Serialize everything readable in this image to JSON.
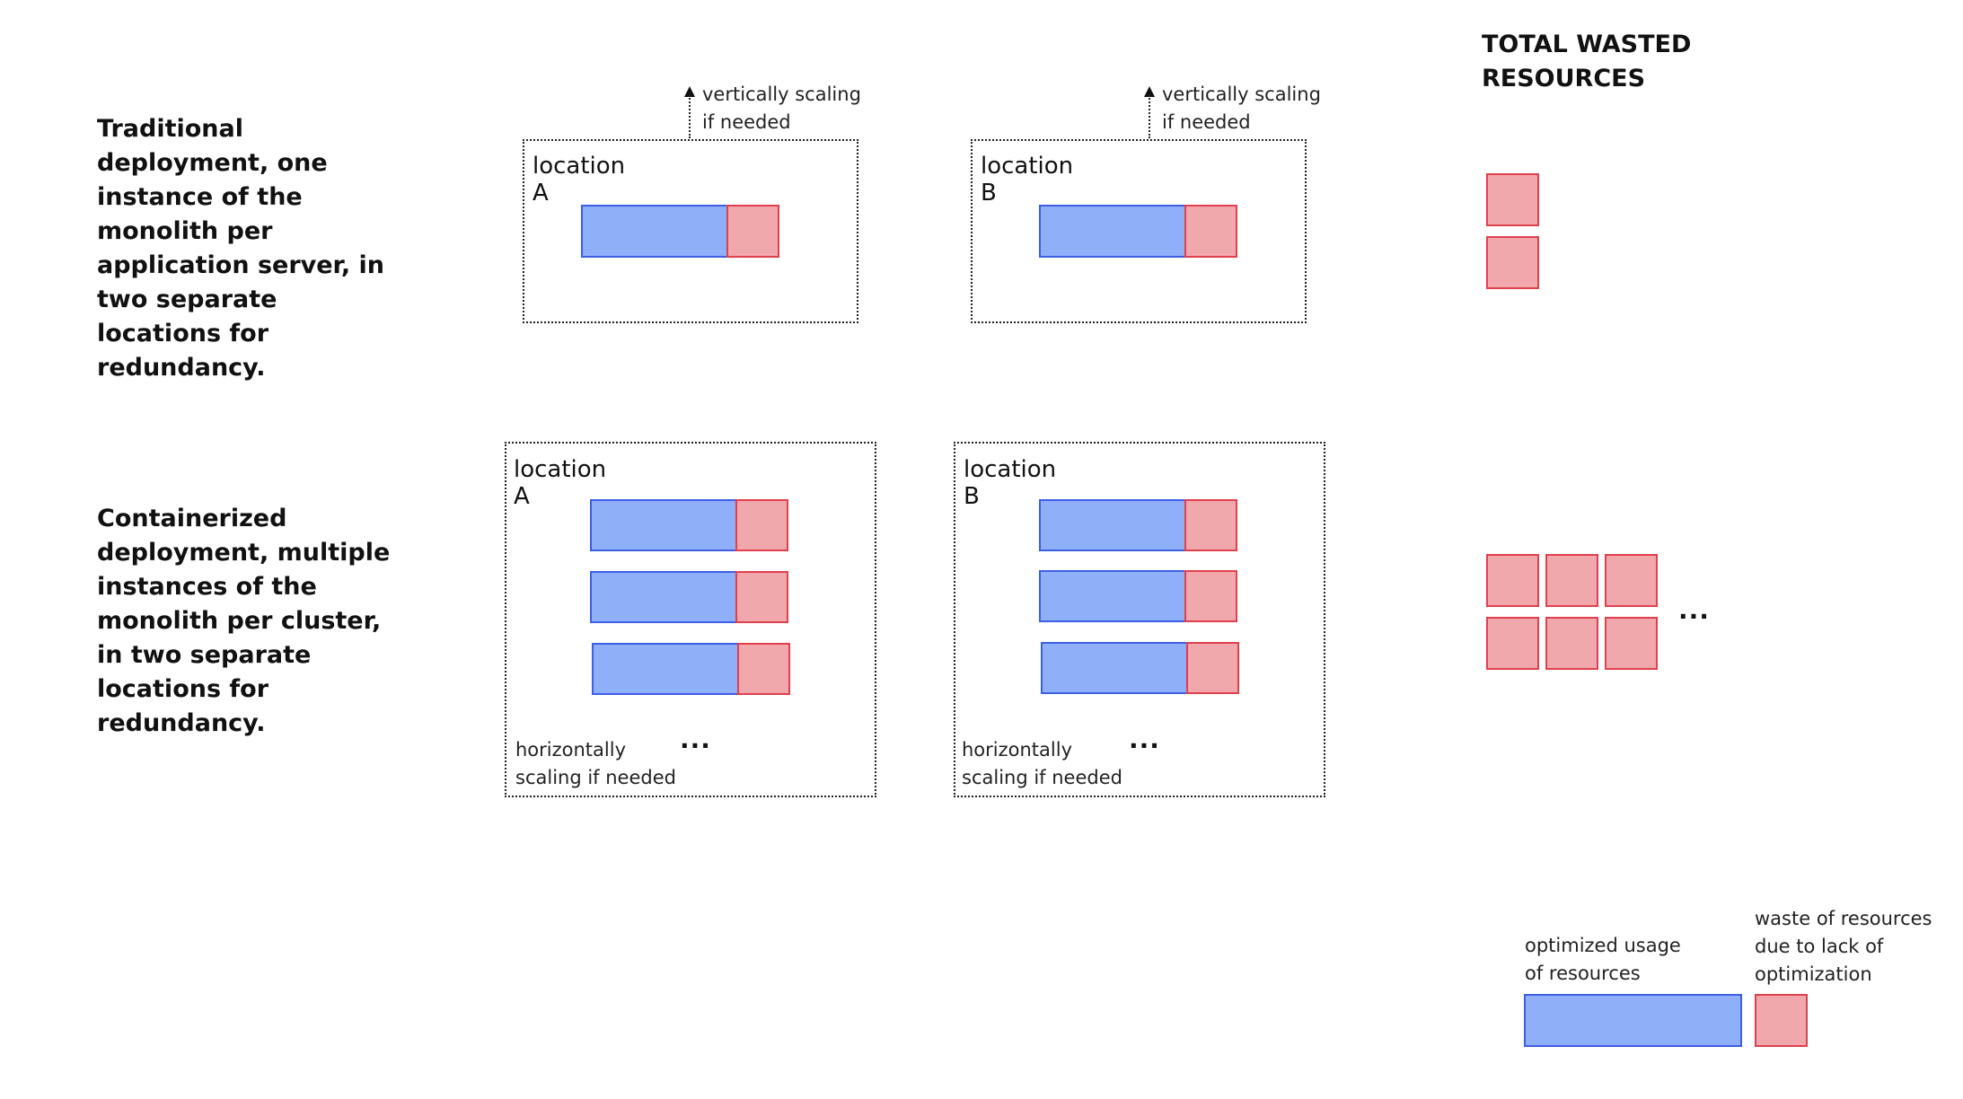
{
  "rows": {
    "traditional_heading": "Traditional deployment, one instance of the monolith per application server, in two separate locations for redundancy.",
    "containerized_heading": "Containerized deployment, multiple instances of the monolith per cluster, in two separate locations for redundancy."
  },
  "total": {
    "heading_line1": "TOTAL WASTED",
    "heading_line2": "RESOURCES",
    "ellipsis": "..."
  },
  "traditional": {
    "location_a": "location A",
    "location_b": "location B",
    "scaling_line1": "vertically scaling",
    "scaling_line2": "if needed"
  },
  "containerized": {
    "location_a": "location A",
    "location_b": "location B",
    "scaling_line1": "horizontally",
    "scaling_line2": "scaling if needed",
    "ellipsis": "..."
  },
  "legend": {
    "optimized_line1": "optimized usage",
    "optimized_line2": "of resources",
    "waste_line1": "waste of resources",
    "waste_line2": "due to lack of",
    "waste_line3": "optimization"
  },
  "colors": {
    "optimized_fill": "#8faff8",
    "optimized_border": "#3d5fe3",
    "waste_fill": "#f0a8ac",
    "waste_border": "#e0404d"
  }
}
